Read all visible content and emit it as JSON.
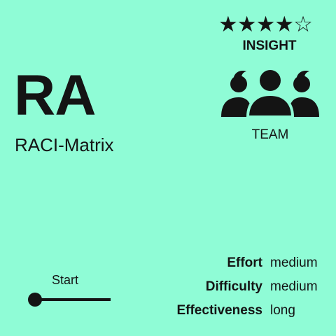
{
  "card": {
    "abbreviation": "RA",
    "name": "RACI-Matrix",
    "rating": {
      "glyphs": "★★★★☆",
      "value": 4,
      "max": 5
    },
    "level": "INSIGHT",
    "category": {
      "icon": "team-icon",
      "label": "TEAM"
    },
    "progress": {
      "label": "Start",
      "value": 0
    },
    "metrics": [
      {
        "key": "Effort",
        "value": "medium"
      },
      {
        "key": "Difficulty",
        "value": "medium"
      },
      {
        "key": "Effectiveness",
        "value": "long"
      }
    ]
  },
  "colors": {
    "background": "#8ffcd6",
    "foreground": "#141414"
  }
}
